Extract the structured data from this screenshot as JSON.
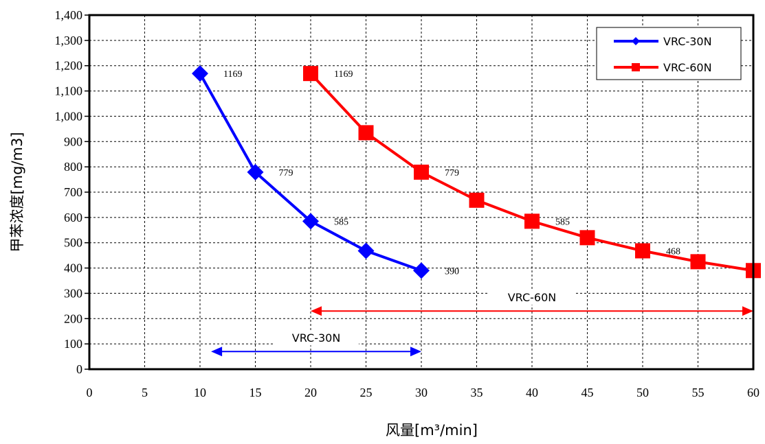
{
  "chart_data": {
    "type": "line",
    "xlabel": "风量[m³/min]",
    "ylabel": "甲苯浓度[mg/m3]",
    "xlim": [
      0,
      60
    ],
    "ylim": [
      0,
      1400
    ],
    "x_ticks": [
      "0",
      "5",
      "10",
      "15",
      "20",
      "25",
      "30",
      "35",
      "40",
      "45",
      "50",
      "55",
      "60"
    ],
    "y_ticks": [
      "0",
      "100",
      "200",
      "300",
      "400",
      "500",
      "600",
      "700",
      "800",
      "900",
      "1,000",
      "1,100",
      "1,200",
      "1,300",
      "1,400"
    ],
    "grid": true,
    "legend_position": "top-right",
    "series": [
      {
        "name": "VRC-30N",
        "color": "#0000ff",
        "marker": "diamond",
        "x": [
          10,
          15,
          20,
          25,
          30
        ],
        "y": [
          1169,
          779,
          585,
          468,
          390
        ],
        "labels": [
          "1169",
          "779",
          "585",
          "",
          "390"
        ]
      },
      {
        "name": "VRC-60N",
        "color": "#ff0000",
        "marker": "square",
        "x": [
          20,
          25,
          30,
          35,
          40,
          45,
          50,
          55,
          60
        ],
        "y": [
          1169,
          935,
          779,
          668,
          585,
          520,
          468,
          425,
          390
        ],
        "labels": [
          "1169",
          "",
          "779",
          "",
          "585",
          "",
          "468",
          "",
          "390"
        ]
      }
    ],
    "ranges": [
      {
        "label": "VRC-30N",
        "x_start": 11,
        "x_end": 30,
        "y": 70,
        "color": "#0000ff"
      },
      {
        "label": "VRC-60N",
        "x_start": 20,
        "x_end": 60,
        "y": 230,
        "color": "#ff0000"
      }
    ]
  }
}
